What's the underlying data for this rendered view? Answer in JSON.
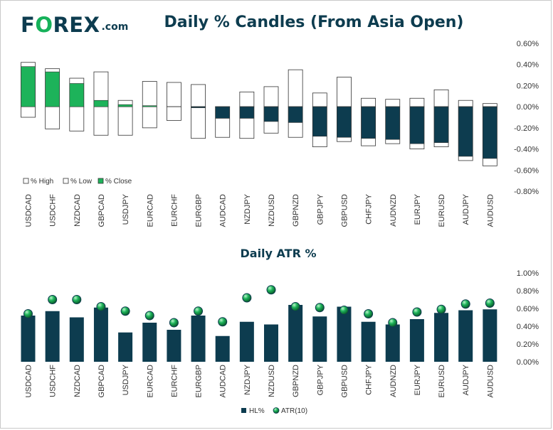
{
  "header": {
    "logo_prefix": "F",
    "logo_o": "O",
    "logo_rest": "REX",
    "logo_suffix": ".com",
    "title": "Daily % Candles (From Asia Open)"
  },
  "colors": {
    "navy": "#0d3c4f",
    "green": "#1db35a",
    "white": "#ffffff",
    "outline": "#333333"
  },
  "chart_data": [
    {
      "type": "bar",
      "subtype": "candle",
      "title": "Daily % Candles (From Asia Open)",
      "categories": [
        "USDCAD",
        "USDCHF",
        "NZDCAD",
        "GBPCAD",
        "USDJPY",
        "EURCAD",
        "EURCHF",
        "EURGBP",
        "AUDCAD",
        "NZDJPY",
        "NZDUSD",
        "GBPNZD",
        "GBPJPY",
        "GBPUSD",
        "CHFJPY",
        "AUDNZD",
        "EURJPY",
        "EURUSD",
        "AUDJPY",
        "AUDUSD"
      ],
      "series": [
        {
          "name": "% High",
          "values": [
            0.42,
            0.36,
            0.27,
            0.33,
            0.06,
            0.24,
            0.23,
            0.21,
            0.0,
            0.14,
            0.19,
            0.35,
            0.13,
            0.28,
            0.08,
            0.07,
            0.08,
            0.16,
            0.06,
            0.03
          ]
        },
        {
          "name": "% Low",
          "values": [
            -0.1,
            -0.21,
            -0.23,
            -0.27,
            -0.27,
            -0.2,
            -0.13,
            -0.3,
            -0.29,
            -0.3,
            -0.25,
            -0.29,
            -0.38,
            -0.33,
            -0.37,
            -0.35,
            -0.4,
            -0.38,
            -0.51,
            -0.56
          ]
        },
        {
          "name": "% Close",
          "values": [
            0.38,
            0.33,
            0.22,
            0.06,
            0.02,
            0.01,
            0.0,
            -0.01,
            -0.11,
            -0.11,
            -0.14,
            -0.15,
            -0.28,
            -0.29,
            -0.3,
            -0.31,
            -0.35,
            -0.34,
            -0.47,
            -0.49
          ]
        }
      ],
      "ylim": [
        -0.8,
        0.6
      ],
      "yticks": [
        "0.60%",
        "0.40%",
        "0.20%",
        "0.00%",
        "-0.20%",
        "-0.40%",
        "-0.60%",
        "-0.80%"
      ],
      "legend": "bottom-left",
      "grid": false
    },
    {
      "type": "bar",
      "title": "Daily ATR %",
      "categories": [
        "USDCAD",
        "USDCHF",
        "NZDCAD",
        "GBPCAD",
        "USDJPY",
        "EURCAD",
        "EURCHF",
        "EURGBP",
        "AUDCAD",
        "NZDJPY",
        "NZDUSD",
        "GBPNZD",
        "GBPJPY",
        "GBPUSD",
        "CHFJPY",
        "AUDNZD",
        "EURJPY",
        "EURUSD",
        "AUDJPY",
        "AUDUSD"
      ],
      "series": [
        {
          "name": "HL%",
          "values": [
            0.52,
            0.57,
            0.5,
            0.61,
            0.33,
            0.44,
            0.36,
            0.52,
            0.29,
            0.45,
            0.42,
            0.64,
            0.51,
            0.62,
            0.45,
            0.42,
            0.48,
            0.55,
            0.58,
            0.59
          ]
        },
        {
          "name": "ATR(10)",
          "values": [
            0.54,
            0.7,
            0.7,
            0.62,
            0.57,
            0.52,
            0.44,
            0.57,
            0.45,
            0.72,
            0.81,
            0.62,
            0.61,
            0.58,
            0.54,
            0.44,
            0.56,
            0.59,
            0.65,
            0.66
          ]
        }
      ],
      "ylim": [
        0,
        1.0
      ],
      "yticks": [
        "1.00%",
        "0.80%",
        "0.60%",
        "0.40%",
        "0.20%",
        "0.00%"
      ],
      "legend": "bottom-center",
      "grid": false
    }
  ]
}
